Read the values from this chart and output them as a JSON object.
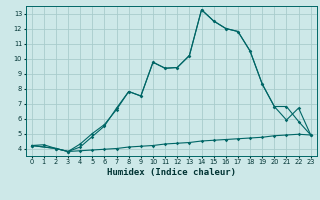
{
  "xlabel": "Humidex (Indice chaleur)",
  "bg_color": "#cde8e8",
  "grid_color": "#a8cccc",
  "line_color": "#006666",
  "xlim": [
    -0.5,
    23.5
  ],
  "ylim": [
    3.5,
    13.5
  ],
  "xticks": [
    0,
    1,
    2,
    3,
    4,
    5,
    6,
    7,
    8,
    9,
    10,
    11,
    12,
    13,
    14,
    15,
    16,
    17,
    18,
    19,
    20,
    21,
    22,
    23
  ],
  "yticks": [
    4,
    5,
    6,
    7,
    8,
    9,
    10,
    11,
    12,
    13
  ],
  "line1_x": [
    0,
    1,
    2,
    3,
    4,
    5,
    6,
    7,
    8,
    9,
    10,
    11,
    12,
    13,
    14,
    15,
    16,
    17,
    18,
    19,
    20,
    21,
    22,
    23
  ],
  "line1_y": [
    4.2,
    4.25,
    4.0,
    3.8,
    3.85,
    3.9,
    3.95,
    4.0,
    4.1,
    4.15,
    4.2,
    4.3,
    4.35,
    4.4,
    4.5,
    4.55,
    4.6,
    4.65,
    4.7,
    4.75,
    4.85,
    4.9,
    4.95,
    4.9
  ],
  "line2_x": [
    0,
    2,
    3,
    4,
    5,
    6,
    7,
    8,
    9,
    10,
    11,
    12,
    13,
    14,
    15,
    16,
    17,
    18,
    19,
    20,
    21,
    22,
    23
  ],
  "line2_y": [
    4.2,
    4.0,
    3.8,
    4.3,
    5.0,
    5.6,
    6.6,
    7.8,
    7.5,
    9.75,
    9.35,
    9.4,
    10.2,
    13.25,
    12.5,
    12.0,
    11.8,
    10.5,
    8.3,
    6.8,
    5.9,
    6.7,
    4.9
  ],
  "line3_x": [
    0,
    2,
    3,
    4,
    5,
    6,
    7,
    8,
    9,
    10,
    11,
    12,
    13,
    14,
    15,
    16,
    17,
    18,
    19,
    20,
    21,
    22,
    23
  ],
  "line3_y": [
    4.2,
    4.0,
    3.8,
    4.1,
    4.8,
    5.5,
    6.7,
    7.8,
    7.5,
    9.75,
    9.35,
    9.4,
    10.2,
    13.25,
    12.5,
    12.0,
    11.8,
    10.5,
    8.3,
    6.8,
    6.8,
    5.8,
    4.9
  ]
}
